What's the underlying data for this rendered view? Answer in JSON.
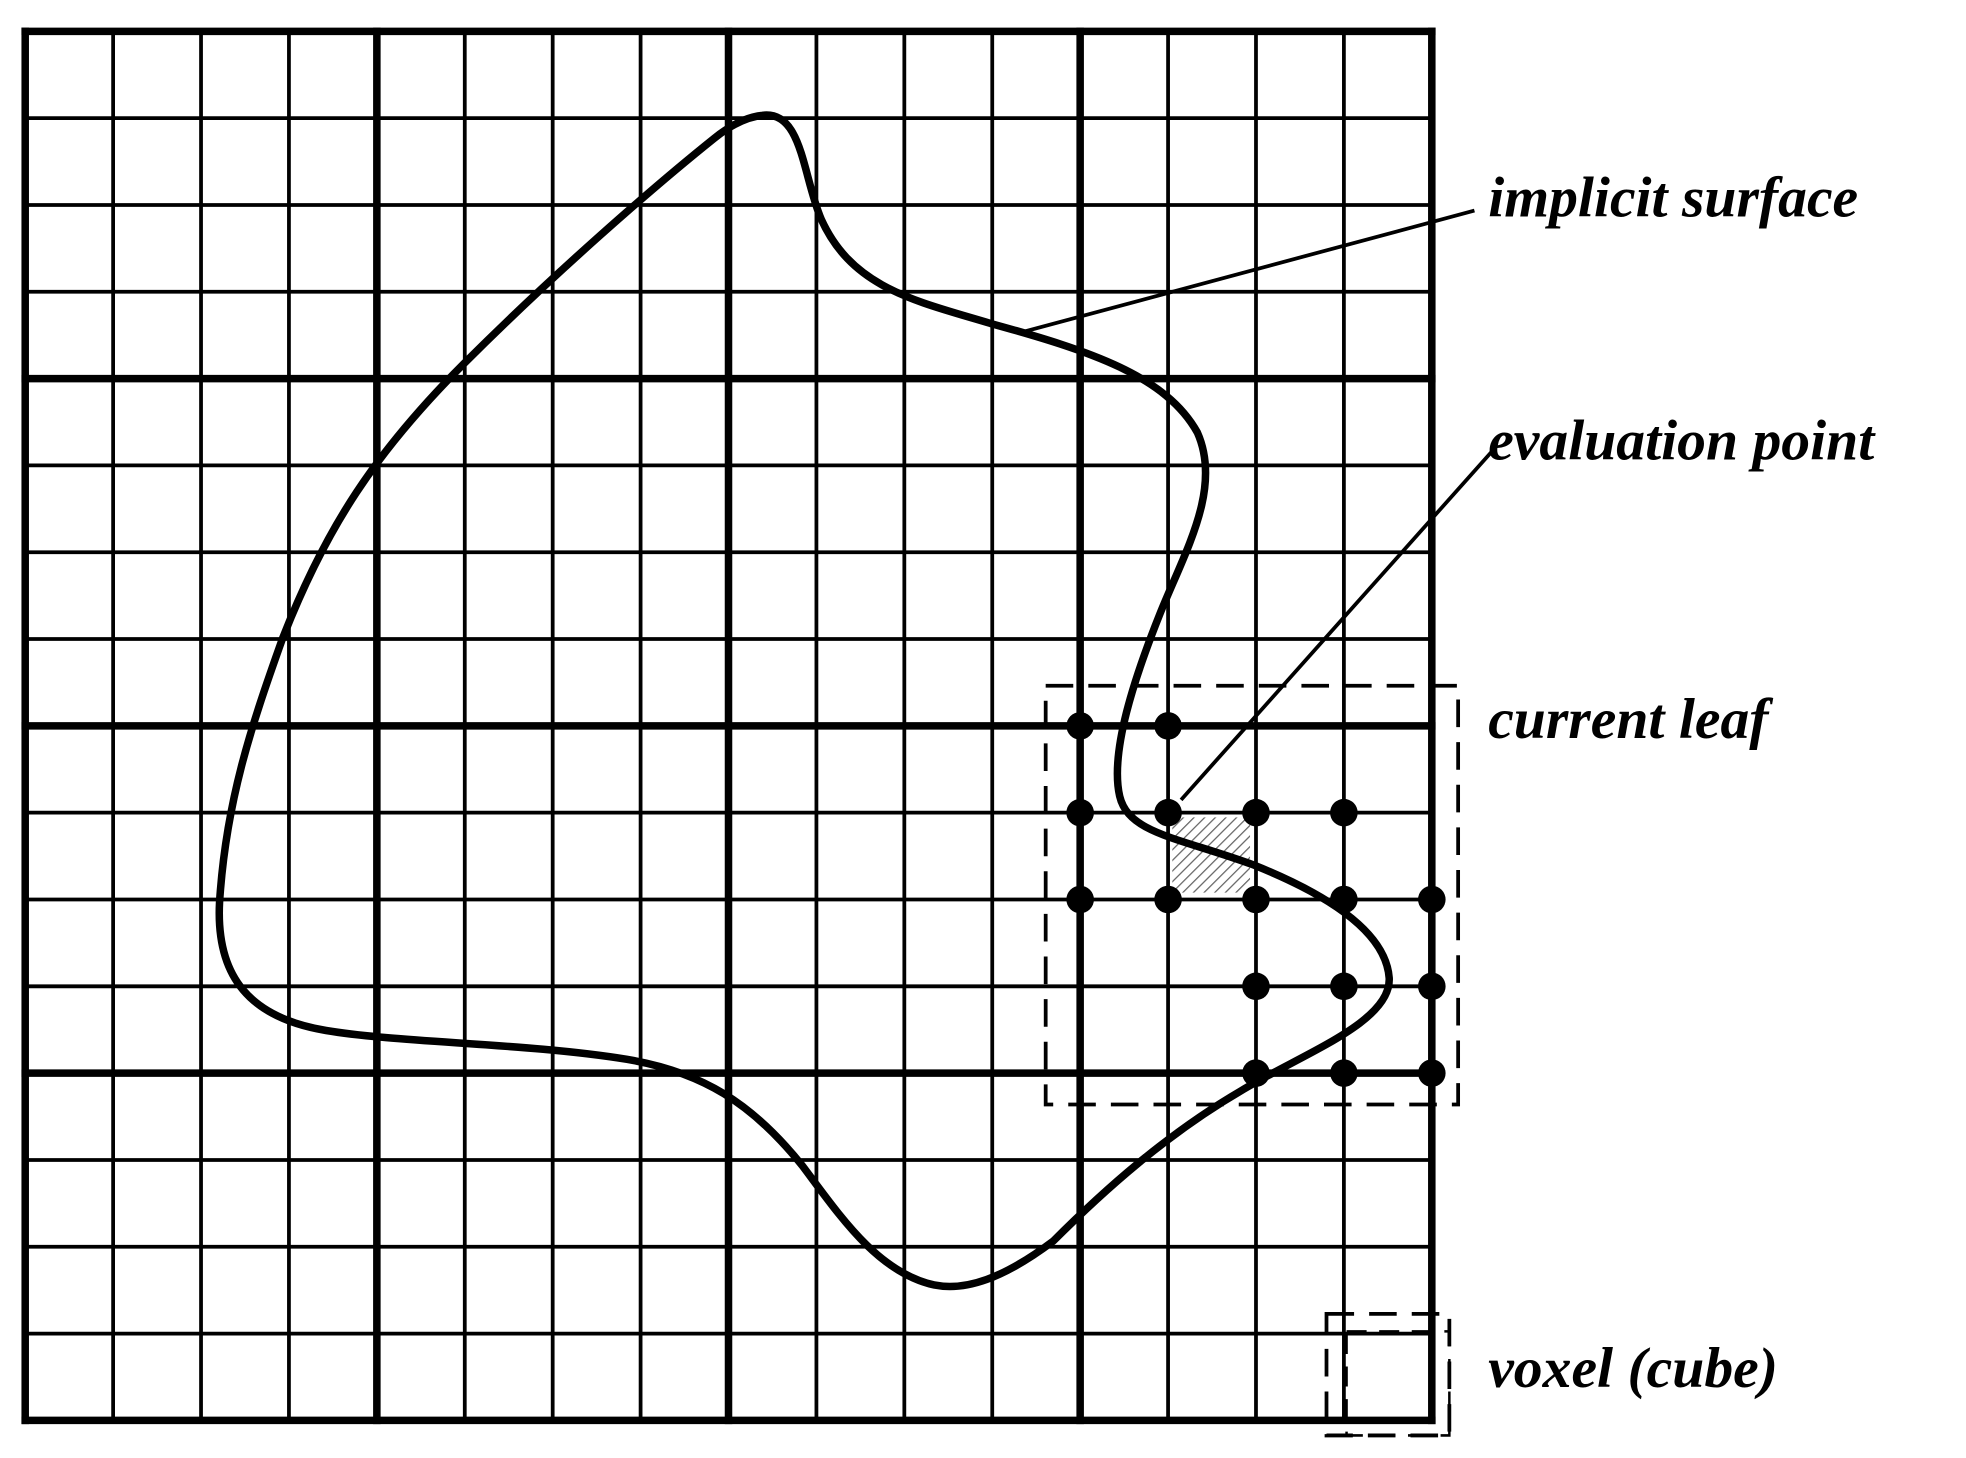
{
  "labels": {
    "implicit_surface": "implicit surface",
    "evaluation_point": "evaluation point",
    "current_leaf": "current leaf",
    "voxel": "voxel (cube)"
  }
}
